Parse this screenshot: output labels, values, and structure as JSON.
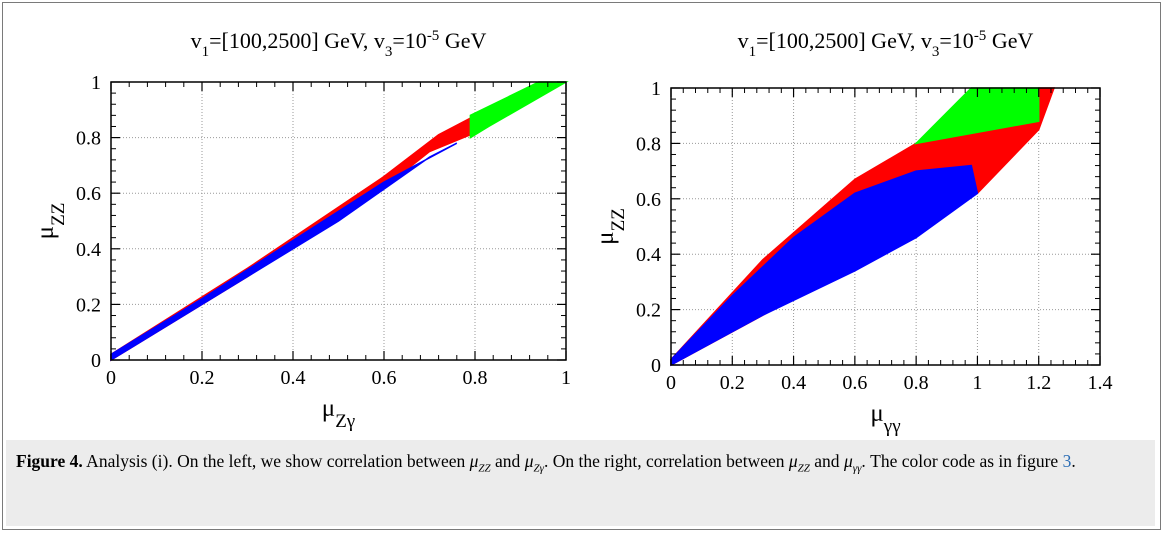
{
  "chart_data": [
    {
      "type": "scatter",
      "title": "v₁=[100,2500] GeV, v₃=10⁻⁵ GeV",
      "title_parts": {
        "a": "v",
        "a_sub": "1",
        "b": "=[100,2500] GeV, v",
        "b_sub": "3",
        "c": "=10",
        "c_sup": "-5",
        "d": " GeV"
      },
      "xlabel": "μ",
      "xlabel_sub": "Zγ",
      "ylabel": "μ",
      "ylabel_sub": "ZZ",
      "xlim": [
        0,
        1
      ],
      "ylim": [
        0,
        1
      ],
      "xticks": [
        "0",
        "0.2",
        "0.4",
        "0.6",
        "0.8",
        "1"
      ],
      "yticks": [
        "0",
        "0.2",
        "0.4",
        "0.6",
        "0.8",
        "1"
      ],
      "grid": true,
      "series": [
        {
          "color": "#ff0000",
          "region": [
            [
              0,
              0
            ],
            [
              0.3,
              0.3
            ],
            [
              0.6,
              0.62
            ],
            [
              0.7,
              0.75
            ],
            [
              0.79,
              0.81
            ],
            [
              0.79,
              0.87
            ],
            [
              0.72,
              0.81
            ],
            [
              0.6,
              0.66
            ],
            [
              0.3,
              0.33
            ],
            [
              0,
              0.02
            ]
          ]
        },
        {
          "color": "#00ff00",
          "region": [
            [
              0.79,
              0.8
            ],
            [
              0.83,
              0.84
            ],
            [
              1.0,
              1.0
            ],
            [
              0.94,
              1.0
            ],
            [
              0.79,
              0.88
            ]
          ]
        },
        {
          "color": "#0000ff",
          "region": [
            [
              0,
              0
            ],
            [
              0.3,
              0.3
            ],
            [
              0.5,
              0.5
            ],
            [
              0.7,
              0.73
            ],
            [
              0.76,
              0.78
            ],
            [
              0.6,
              0.64
            ],
            [
              0.4,
              0.43
            ],
            [
              0.2,
              0.22
            ],
            [
              0,
              0.02
            ]
          ]
        }
      ]
    },
    {
      "type": "scatter",
      "title": "v₁=[100,2500] GeV, v₃=10⁻⁵ GeV",
      "title_parts": {
        "a": "v",
        "a_sub": "1",
        "b": "=[100,2500] GeV, v",
        "b_sub": "3",
        "c": "=10",
        "c_sup": "-5",
        "d": " GeV"
      },
      "xlabel": "μ",
      "xlabel_sub": "γγ",
      "ylabel": "μ",
      "ylabel_sub": "ZZ",
      "xlim": [
        0,
        1.4
      ],
      "ylim": [
        0,
        1
      ],
      "xticks": [
        "0",
        "0.2",
        "0.4",
        "0.6",
        "0.8",
        "1",
        "1.2",
        "1.4"
      ],
      "yticks": [
        "0",
        "0.2",
        "0.4",
        "0.6",
        "0.8",
        "1"
      ],
      "grid": true,
      "series": [
        {
          "color": "#ff0000",
          "region": [
            [
              0,
              0
            ],
            [
              0.5,
              0.3
            ],
            [
              0.8,
              0.48
            ],
            [
              1.0,
              0.62
            ],
            [
              1.2,
              0.85
            ],
            [
              1.25,
              1.0
            ],
            [
              1.2,
              1.0
            ],
            [
              0.8,
              0.8
            ],
            [
              0.6,
              0.67
            ],
            [
              0.3,
              0.38
            ],
            [
              0,
              0.02
            ]
          ]
        },
        {
          "color": "#00ff00",
          "region": [
            [
              0.8,
              0.8
            ],
            [
              1.2,
              0.88
            ],
            [
              1.2,
              1.0
            ],
            [
              0.98,
              1.0
            ]
          ]
        },
        {
          "color": "#0000ff",
          "region": [
            [
              0,
              0
            ],
            [
              0.3,
              0.18
            ],
            [
              0.6,
              0.34
            ],
            [
              0.8,
              0.46
            ],
            [
              1.0,
              0.62
            ],
            [
              0.98,
              0.72
            ],
            [
              0.8,
              0.7
            ],
            [
              0.6,
              0.62
            ],
            [
              0.4,
              0.46
            ],
            [
              0.2,
              0.25
            ],
            [
              0,
              0.02
            ]
          ]
        }
      ]
    }
  ],
  "caption": {
    "label": "Figure 4.",
    "t1": " Analysis (i). On the left, we show correlation between ",
    "m1": "μ",
    "m1_sub": "ZZ",
    "t2": " and ",
    "m2": "μ",
    "m2_sub": "Zγ",
    "t3": ". On the right, correlation between ",
    "m3": "μ",
    "m3_sub": "ZZ",
    "t4": " and ",
    "m4": "μ",
    "m4_sub": "γγ",
    "t5": ". The color code as in figure ",
    "ref": "3",
    "t6": "."
  }
}
